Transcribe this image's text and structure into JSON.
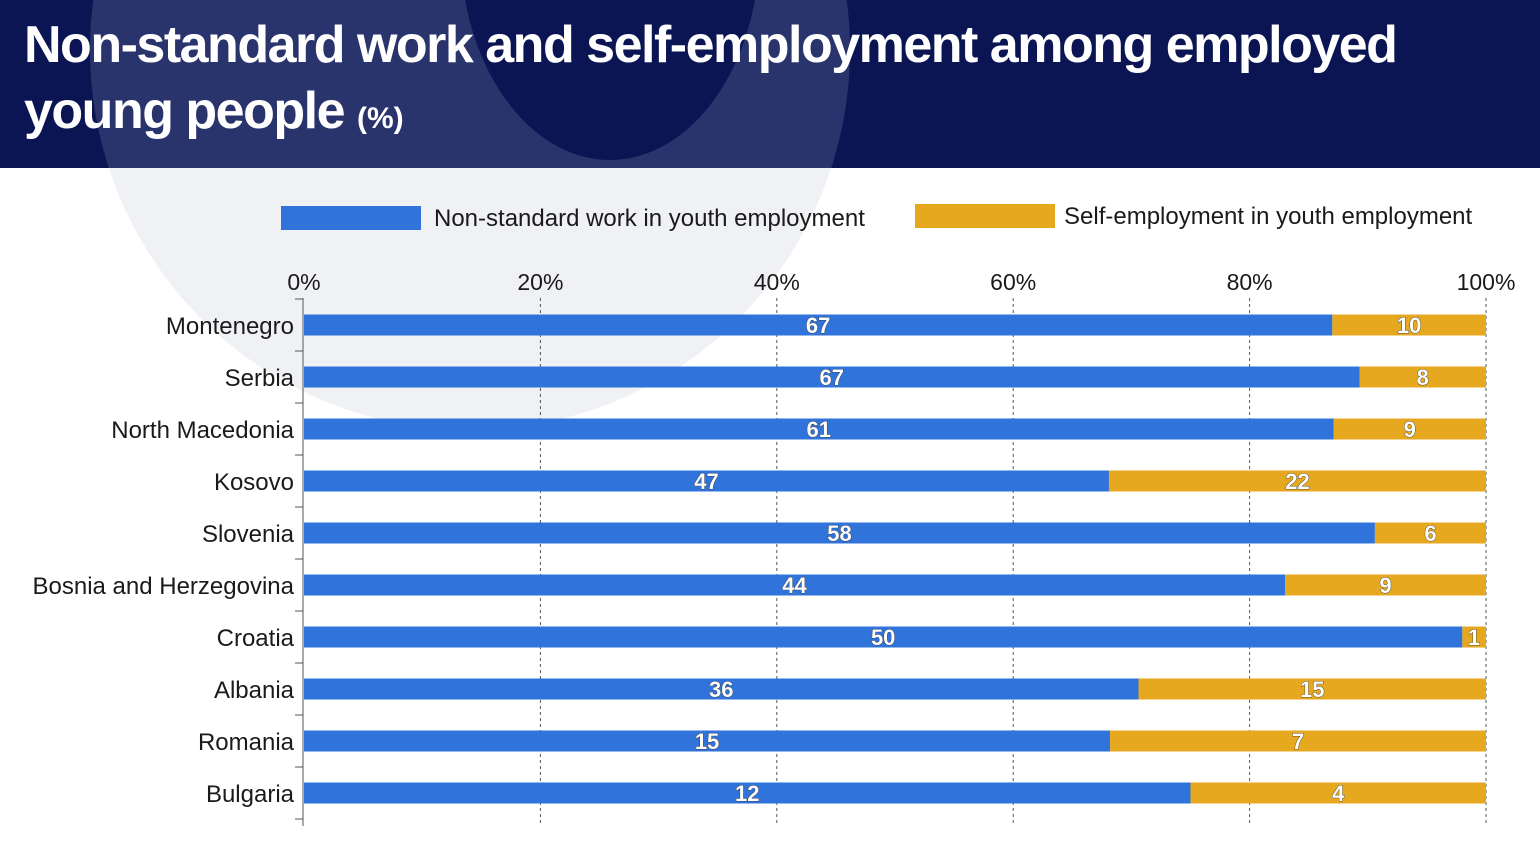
{
  "title": "Non-standard work and self-employment among employed young people",
  "title_unit": "(%)",
  "colors": {
    "header_bg": "#0b1553",
    "non_standard": "#2f73db",
    "self_employment": "#e6a81e"
  },
  "chart_data": {
    "type": "bar",
    "orientation": "horizontal",
    "stacked": true,
    "categories": [
      "Montenegro",
      "Serbia",
      "North Macedonia",
      "Kosovo",
      "Slovenia",
      "Bosnia and Herzegovina",
      "Croatia",
      "Albania",
      "Romania",
      "Bulgaria"
    ],
    "series": [
      {
        "name": "Non-standard work in youth employment",
        "color": "#2f73db",
        "labels": [
          67,
          67,
          61,
          47,
          58,
          44,
          50,
          36,
          15,
          12
        ],
        "share_of_bar_percent": [
          87,
          89.3,
          87.1,
          68.1,
          90.6,
          83,
          98,
          70.6,
          68.2,
          75
        ]
      },
      {
        "name": "Self-employment in youth employment",
        "color": "#e6a81e",
        "labels": [
          10,
          8,
          9,
          22,
          6,
          9,
          1,
          15,
          7,
          4
        ],
        "share_of_bar_percent": [
          13,
          10.7,
          12.9,
          31.9,
          9.4,
          17,
          2,
          29.4,
          31.8,
          25
        ]
      }
    ],
    "x_ticks": [
      "0%",
      "20%",
      "40%",
      "60%",
      "80%",
      "100%"
    ],
    "xlim": [
      0,
      100
    ],
    "grid": "vertical dashed",
    "legend_position": "top"
  }
}
